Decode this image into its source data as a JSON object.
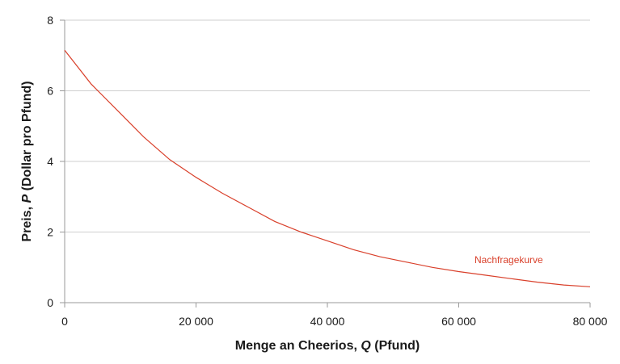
{
  "chart_data": {
    "type": "line",
    "xlabel_parts": [
      "Menge an Cheerios, ",
      "Q",
      " (Pfund)"
    ],
    "ylabel_parts": [
      "Preis, ",
      "P",
      " (Dollar pro Pfund)"
    ],
    "xlim": [
      0,
      80000
    ],
    "ylim": [
      0,
      8
    ],
    "grid": true,
    "x_ticks": [
      0,
      20000,
      40000,
      60000,
      80000
    ],
    "x_tick_labels": [
      "0",
      "20 000",
      "40 000",
      "60 000",
      "80 000"
    ],
    "y_ticks": [
      0,
      2,
      4,
      6,
      8
    ],
    "y_tick_labels": [
      "0",
      "2",
      "4",
      "6",
      "8"
    ],
    "series": [
      {
        "name": "Nachfragekurve",
        "color": "#d9402b",
        "x": [
          0,
          4000,
          8000,
          12000,
          16000,
          20000,
          24000,
          28000,
          32000,
          36000,
          40000,
          44000,
          48000,
          52000,
          56000,
          60000,
          64000,
          68000,
          72000,
          76000,
          80000
        ],
        "y": [
          7.15,
          6.2,
          5.45,
          4.7,
          4.05,
          3.55,
          3.1,
          2.7,
          2.3,
          2.0,
          1.75,
          1.5,
          1.3,
          1.15,
          1.0,
          0.88,
          0.78,
          0.68,
          0.58,
          0.5,
          0.45
        ]
      }
    ]
  }
}
